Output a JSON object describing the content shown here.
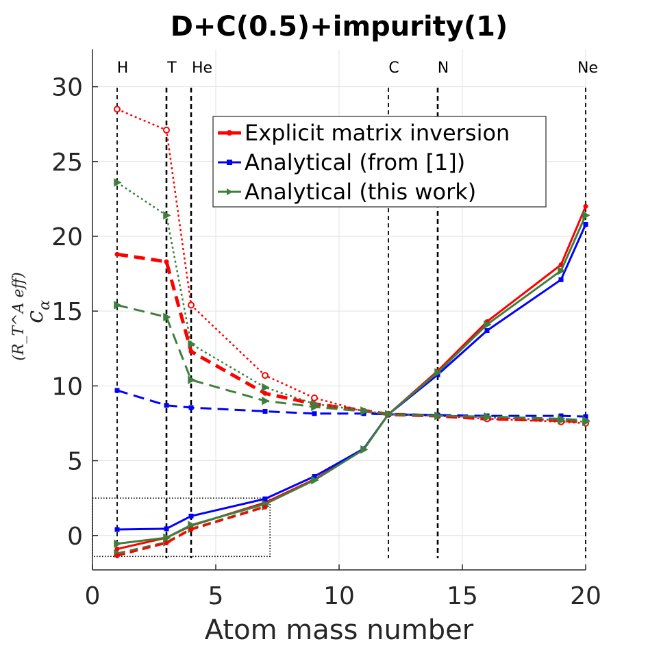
{
  "chart_data": {
    "type": "line",
    "title": "D+C(0.5)+impurity(1)",
    "xlabel": "Atom mass number",
    "ylabel_main": "c",
    "ylabel_sub": "α",
    "ylabel_sup": "(R_T^A eff)",
    "xlim": [
      0,
      20
    ],
    "ylim": [
      -2.3,
      32.5
    ],
    "xticks": [
      "0",
      "5",
      "10",
      "15",
      "20"
    ],
    "yticks": [
      "0",
      "5",
      "10",
      "15",
      "20",
      "25",
      "30"
    ],
    "xtick_values": [
      0,
      5,
      10,
      15,
      20
    ],
    "ytick_values": [
      0,
      5,
      10,
      15,
      20,
      25,
      30
    ],
    "grid": true,
    "element_markers": [
      {
        "label": "H",
        "x": 1
      },
      {
        "label": "T",
        "x": 3
      },
      {
        "label": "He",
        "x": 4
      },
      {
        "label": "C",
        "x": 12
      },
      {
        "label": "N",
        "x": 14
      },
      {
        "label": "Ne",
        "x": 20
      }
    ],
    "zoom_box": {
      "x": [
        0,
        7.2
      ],
      "y": [
        -1.4,
        2.5
      ]
    },
    "legend": {
      "position": "top-center",
      "entries": [
        {
          "label": "Explicit matrix inversion",
          "color": "#ff0000"
        },
        {
          "label": "Analytical (from [1])",
          "color": "#0000ff"
        },
        {
          "label": "Analytical (this work)",
          "color": "#3e7f3e"
        }
      ]
    },
    "series": [
      {
        "name": "Explicit matrix inversion",
        "style": "solid",
        "color": "#ff0000",
        "x": [
          1,
          3,
          4,
          7,
          9,
          11,
          12,
          14,
          16,
          19,
          20
        ],
        "y": [
          -0.9,
          -0.15,
          0.65,
          2.2,
          3.75,
          5.8,
          8.1,
          11.0,
          14.3,
          18.1,
          22.0
        ]
      },
      {
        "name": "Explicit matrix inversion",
        "style": "dashed",
        "color": "#ff0000",
        "x": [
          1,
          3,
          4,
          7,
          9,
          11,
          12,
          14,
          16,
          19,
          20
        ],
        "y": [
          18.8,
          18.3,
          12.3,
          9.5,
          8.8,
          8.35,
          8.1,
          8.0,
          7.8,
          7.7,
          7.6
        ]
      },
      {
        "name": "Explicit matrix inversion",
        "style": "dotted",
        "color": "#ff0000",
        "x": [
          1,
          3,
          4,
          7,
          9,
          11,
          12,
          14,
          16,
          19,
          20
        ],
        "y": [
          28.5,
          27.1,
          15.4,
          10.7,
          9.2,
          8.3,
          8.1,
          8.0,
          7.8,
          7.6,
          7.5
        ]
      },
      {
        "name": "Analytical (from [1])",
        "style": "solid",
        "color": "#0000ff",
        "x": [
          1,
          3,
          4,
          7,
          9,
          11,
          12,
          14,
          16,
          19,
          20
        ],
        "y": [
          0.4,
          0.45,
          1.3,
          2.45,
          3.95,
          5.8,
          8.1,
          10.75,
          13.7,
          17.1,
          20.8
        ]
      },
      {
        "name": "Analytical (from [1])",
        "style": "dashed",
        "color": "#0000ff",
        "x": [
          1,
          3,
          4,
          7,
          9,
          11,
          12,
          14,
          16,
          19,
          20
        ],
        "y": [
          9.7,
          8.7,
          8.55,
          8.3,
          8.15,
          8.15,
          8.1,
          8.05,
          8.0,
          8.0,
          7.95
        ]
      },
      {
        "name": "Analytical (this work)",
        "style": "solid",
        "color": "#3e7f3e",
        "x": [
          1,
          3,
          4,
          7,
          9,
          11,
          12,
          14,
          16,
          19,
          20
        ],
        "y": [
          -0.55,
          -0.15,
          0.7,
          2.1,
          3.7,
          5.75,
          8.1,
          10.9,
          14.1,
          17.7,
          21.4
        ]
      },
      {
        "name": "Analytical (this work)",
        "style": "dashed",
        "color": "#3e7f3e",
        "x": [
          1,
          3,
          4,
          7,
          9,
          11,
          12,
          14,
          16,
          19,
          20
        ],
        "y": [
          15.4,
          14.6,
          10.4,
          9.0,
          8.6,
          8.3,
          8.1,
          8.0,
          7.95,
          7.8,
          7.7
        ]
      },
      {
        "name": "Analytical (this work)",
        "style": "dotted",
        "color": "#3e7f3e",
        "x": [
          1,
          3,
          4,
          7,
          9,
          11,
          12,
          14,
          16,
          19,
          20
        ],
        "y": [
          23.6,
          21.4,
          12.8,
          9.9,
          8.8,
          8.35,
          8.1,
          8.0,
          7.9,
          7.7,
          7.6
        ]
      },
      {
        "name": "Analytical (this work)",
        "style": "dash-lower",
        "color": "#3e7f3e",
        "x": [
          1,
          3,
          4,
          7
        ],
        "y": [
          -1.2,
          -0.45,
          0.45,
          1.95
        ]
      },
      {
        "name": "Explicit matrix inversion",
        "style": "dash-lower",
        "color": "#ff0000",
        "x": [
          1,
          3,
          4,
          7
        ],
        "y": [
          -1.35,
          -0.5,
          0.4,
          1.9
        ]
      }
    ]
  }
}
